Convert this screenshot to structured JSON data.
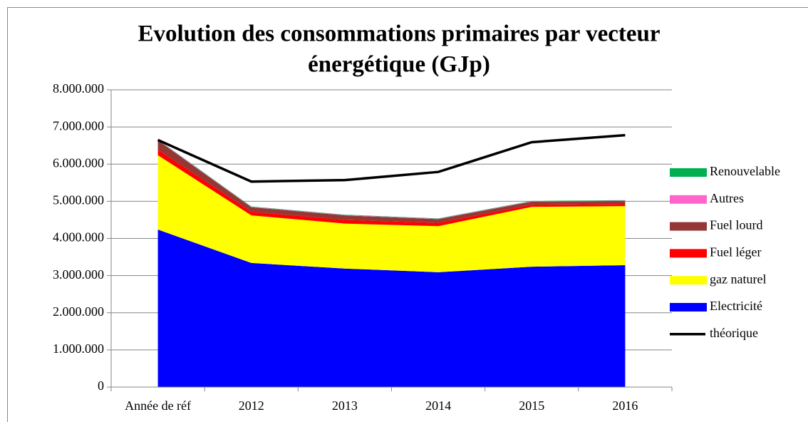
{
  "chart_data": {
    "type": "area",
    "title": [
      "Evolution des consommations primaires par vecteur",
      "énergétique (GJp)"
    ],
    "categories": [
      "Année de réf",
      "2012",
      "2013",
      "2014",
      "2015",
      "2016"
    ],
    "ylim": [
      0,
      8000000
    ],
    "yticks": [
      0,
      {
        "value": 1000000,
        "label": "1.000.000"
      },
      {
        "value": 2000000,
        "label": "2.000.000"
      },
      {
        "value": 3000000,
        "label": "3.000.000"
      },
      {
        "value": 4000000,
        "label": "4.000.000"
      },
      {
        "value": 5000000,
        "label": "5.000.000"
      },
      {
        "value": 6000000,
        "label": "6.000.000"
      },
      {
        "value": 7000000,
        "label": "7.000.000"
      },
      {
        "value": 8000000,
        "label": "8.000.000"
      }
    ],
    "grid": true,
    "legend": "right",
    "series": [
      {
        "name": "Electricité",
        "color": "#0000ff",
        "values": [
          4240000,
          3340000,
          3190000,
          3090000,
          3240000,
          3280000
        ]
      },
      {
        "name": "gaz naturel",
        "color": "#ffff00",
        "values": [
          2000000,
          1280000,
          1210000,
          1240000,
          1610000,
          1590000
        ]
      },
      {
        "name": "Fuel léger",
        "color": "#ff0000",
        "values": [
          150000,
          100000,
          100000,
          90000,
          60000,
          60000
        ]
      },
      {
        "name": "Fuel lourd",
        "color": "#953735",
        "values": [
          250000,
          120000,
          120000,
          100000,
          80000,
          80000
        ]
      },
      {
        "name": "Autres",
        "color": "#ff66cc",
        "values": [
          10000,
          10000,
          10000,
          10000,
          10000,
          10000
        ]
      },
      {
        "name": "Renouvelable",
        "color": "#00b050",
        "values": [
          10000,
          10000,
          10000,
          10000,
          10000,
          10000
        ]
      },
      {
        "name": "théorique",
        "color": "#000000",
        "type": "line",
        "values": [
          6650000,
          5530000,
          5570000,
          5790000,
          6590000,
          6780000
        ]
      }
    ]
  }
}
